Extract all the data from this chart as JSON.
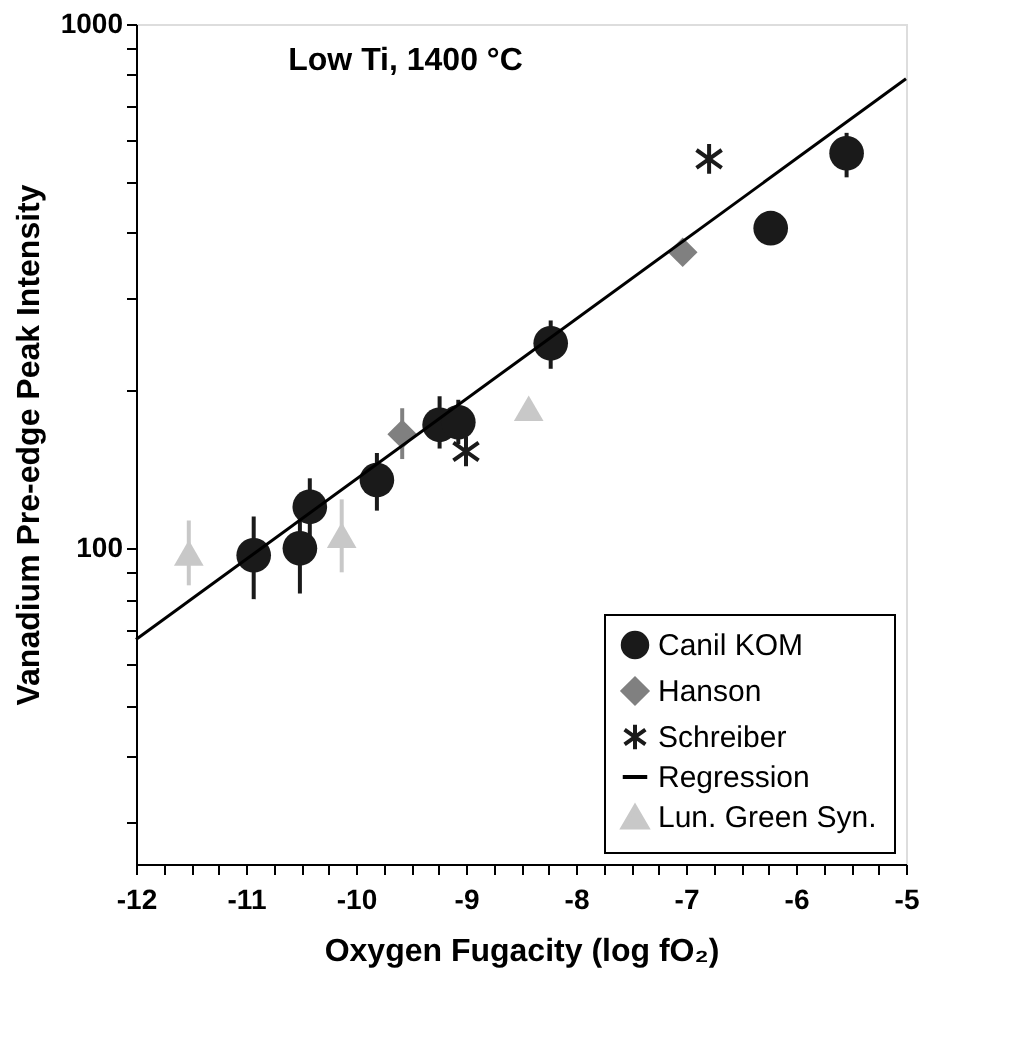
{
  "chart_data": {
    "type": "scatter",
    "title": "Low Ti, 1400 °C",
    "xlabel": "Oxygen Fugacity (log fO₂)",
    "ylabel": "Vanadium Pre-edge Peak Intensity",
    "log": "y",
    "xlim": [
      -12,
      -5
    ],
    "ylim": [
      25,
      1000
    ],
    "xticks": [
      -12,
      {
        "value": -11.75,
        "label": null
      },
      {
        "value": -11.5,
        "label": null
      },
      {
        "value": -11.25,
        "label": null
      },
      -11,
      {
        "value": -10.75,
        "label": null
      },
      {
        "value": -10.5,
        "label": null
      },
      {
        "value": -10.25,
        "label": null
      },
      -10,
      {
        "value": -9.75,
        "label": null
      },
      {
        "value": -9.5,
        "label": null
      },
      {
        "value": -9.25,
        "label": null
      },
      -9,
      {
        "value": -8.75,
        "label": null
      },
      {
        "value": -8.5,
        "label": null
      },
      {
        "value": -8.25,
        "label": null
      },
      -8,
      {
        "value": -7.75,
        "label": null
      },
      {
        "value": -7.5,
        "label": null
      },
      {
        "value": -7.25,
        "label": null
      },
      -7,
      {
        "value": -6.75,
        "label": null
      },
      {
        "value": -6.5,
        "label": null
      },
      {
        "value": -6.25,
        "label": null
      },
      -6,
      {
        "value": -5.75,
        "label": null
      },
      {
        "value": -5.5,
        "label": null
      },
      {
        "value": -5.25,
        "label": null
      },
      -5
    ],
    "yticks": [
      {
        "value": 30,
        "label": null
      },
      {
        "value": 40,
        "label": null
      },
      {
        "value": 50,
        "label": null
      },
      {
        "value": 60,
        "label": null
      },
      {
        "value": 70,
        "label": null
      },
      {
        "value": 80,
        "label": null
      },
      {
        "value": 90,
        "label": null
      },
      100,
      {
        "value": 200,
        "label": null
      },
      {
        "value": 300,
        "label": null
      },
      {
        "value": 400,
        "label": null
      },
      {
        "value": 500,
        "label": null
      },
      {
        "value": 600,
        "label": null
      },
      {
        "value": 700,
        "label": null
      },
      {
        "value": 800,
        "label": null
      },
      {
        "value": 900,
        "label": null
      },
      1000
    ],
    "grid": false,
    "legend": "bottom right",
    "series": [
      {
        "name": "Canil KOM",
        "color": "#1a1a1a",
        "marker": "circle",
        "x": [
          -10.93,
          -10.51,
          -10.42,
          -9.81,
          -9.24,
          -9.07,
          -8.23,
          -6.23,
          -5.54
        ],
        "values": [
          97,
          100,
          120,
          135,
          172,
          174,
          246,
          408,
          567
        ],
        "errors": [
          [
            80,
            115
          ],
          [
            82,
            115
          ],
          [
            105,
            136
          ],
          [
            118,
            152
          ],
          [
            155,
            195
          ],
          [
            158,
            192
          ],
          [
            220,
            272
          ],
          null,
          [
            510,
            620
          ]
        ]
      },
      {
        "name": "Hanson",
        "color": "#808080",
        "marker": "diamond",
        "x": [
          -9.58,
          -7.03
        ],
        "values": [
          165,
          367
        ],
        "errors": [
          [
            148,
            185
          ],
          null
        ]
      },
      {
        "name": "Schreiber",
        "color": "#1a1a1a",
        "marker": "cross",
        "x": [
          -9.0,
          -6.79
        ],
        "values": [
          153,
          553
        ]
      },
      {
        "name": "Regression",
        "type": "line",
        "color": "#000000",
        "marker": "none",
        "line_style": "solid",
        "x": [
          -12,
          -5
        ],
        "values": [
          67,
          786
        ]
      },
      {
        "name": "Lun. Green Syn.",
        "color": "#c8c8c8",
        "marker": "triangle",
        "x": [
          -11.52,
          -10.13,
          -8.43
        ],
        "values": [
          98,
          106,
          185
        ],
        "errors": [
          [
            85,
            113
          ],
          [
            90,
            124
          ],
          null
        ]
      }
    ]
  }
}
